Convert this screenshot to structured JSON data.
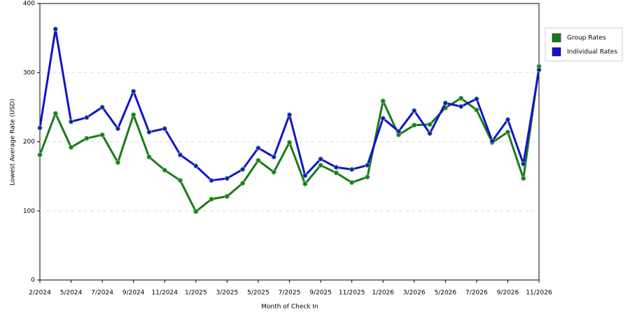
{
  "chart_data": {
    "type": "line",
    "xlabel": "Month of Check In",
    "ylabel": "Lowest Average Rate (USD)",
    "categories": [
      "2/2024",
      null,
      "5/2024",
      null,
      "7/2024",
      null,
      "9/2024",
      null,
      "11/2024",
      null,
      "1/2025",
      null,
      "3/2025",
      null,
      "5/2025",
      null,
      "7/2025",
      null,
      "9/2025",
      null,
      "11/2025",
      null,
      "1/2026",
      null,
      "3/2026",
      null,
      "5/2026",
      null,
      "7/2026",
      null,
      "9/2026",
      null,
      "11/2026"
    ],
    "series": [
      {
        "name": "Group Rates",
        "color": "#1a7a1a",
        "values": [
          181,
          241,
          192,
          205,
          210,
          170,
          239,
          178,
          159,
          144,
          99,
          117,
          121,
          140,
          173,
          156,
          199,
          139,
          166,
          155,
          141,
          149,
          259,
          210,
          224,
          225,
          249,
          263,
          246,
          199,
          214,
          147,
          309
        ]
      },
      {
        "name": "Individual Rates",
        "color": "#1414c8",
        "values": [
          220,
          363,
          229,
          235,
          250,
          219,
          273,
          214,
          219,
          181,
          165,
          144,
          147,
          160,
          191,
          178,
          239,
          151,
          175,
          163,
          160,
          166,
          234,
          215,
          245,
          212,
          256,
          251,
          262,
          201,
          232,
          168,
          304
        ]
      }
    ],
    "ylim": [
      0,
      400
    ],
    "yticks": [
      0,
      100,
      200,
      300,
      400
    ],
    "grid": true,
    "legend": "right"
  }
}
